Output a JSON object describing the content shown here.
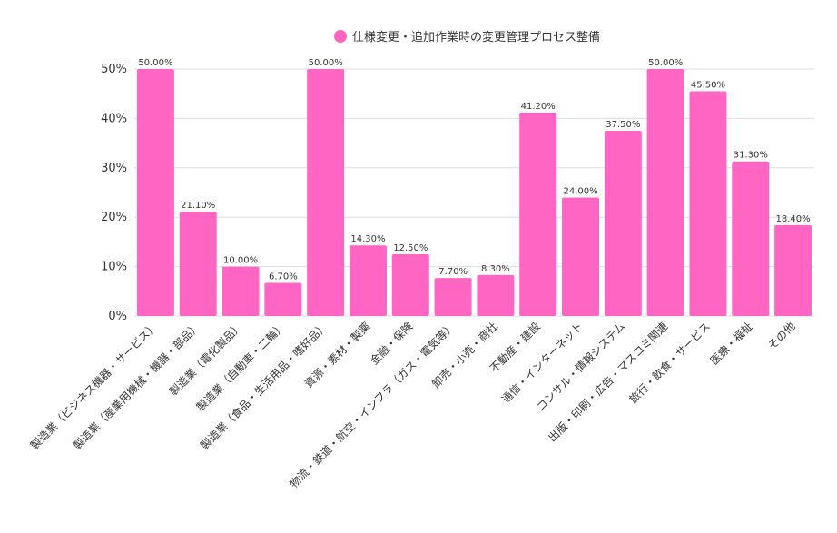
{
  "chart_data": {
    "type": "bar",
    "categories": [
      "製造業（ビジネス機器・サービス）",
      "製造業（産業用機械・機器・部品）",
      "製造業（電化製品）",
      "製造業（自動車・二輪）",
      "製造業（食品・生活用品・嗜好品）",
      "資源・素材・製薬",
      "金融・保険",
      "物流・鉄道・航空・インフラ（ガス・電気等）",
      "卸売・小売・商社",
      "不動産・建設",
      "通信・インターネット",
      "コンサル・情報システム",
      "出版・印刷・広告・マスコミ関連",
      "旅行・飲食・サービス",
      "医療・福祉",
      "その他"
    ],
    "series": [
      {
        "name": "仕様変更・追加作業時の変更管理プロセス整備",
        "values": [
          50.0,
          21.1,
          10.0,
          6.7,
          50.0,
          14.3,
          12.5,
          7.7,
          8.3,
          41.2,
          24.0,
          37.5,
          50.0,
          45.5,
          31.3,
          18.4
        ],
        "labels": [
          "50.00%",
          "21.10%",
          "10.00%",
          "6.70%",
          "50.00%",
          "14.30%",
          "12.50%",
          "7.70%",
          "8.30%",
          "41.20%",
          "24.00%",
          "37.50%",
          "50.00%",
          "45.50%",
          "31.30%",
          "18.40%"
        ]
      }
    ],
    "yticks": [
      "0%",
      "10%",
      "20%",
      "30%",
      "40%",
      "50%"
    ],
    "ytick_values": [
      0,
      10,
      20,
      30,
      40,
      50
    ],
    "ylim": [
      0,
      50
    ],
    "grid": true,
    "legend_position": "top",
    "colors": {
      "bar": "#ff66c4",
      "grid": "#dddddd",
      "text": "#333333"
    }
  }
}
